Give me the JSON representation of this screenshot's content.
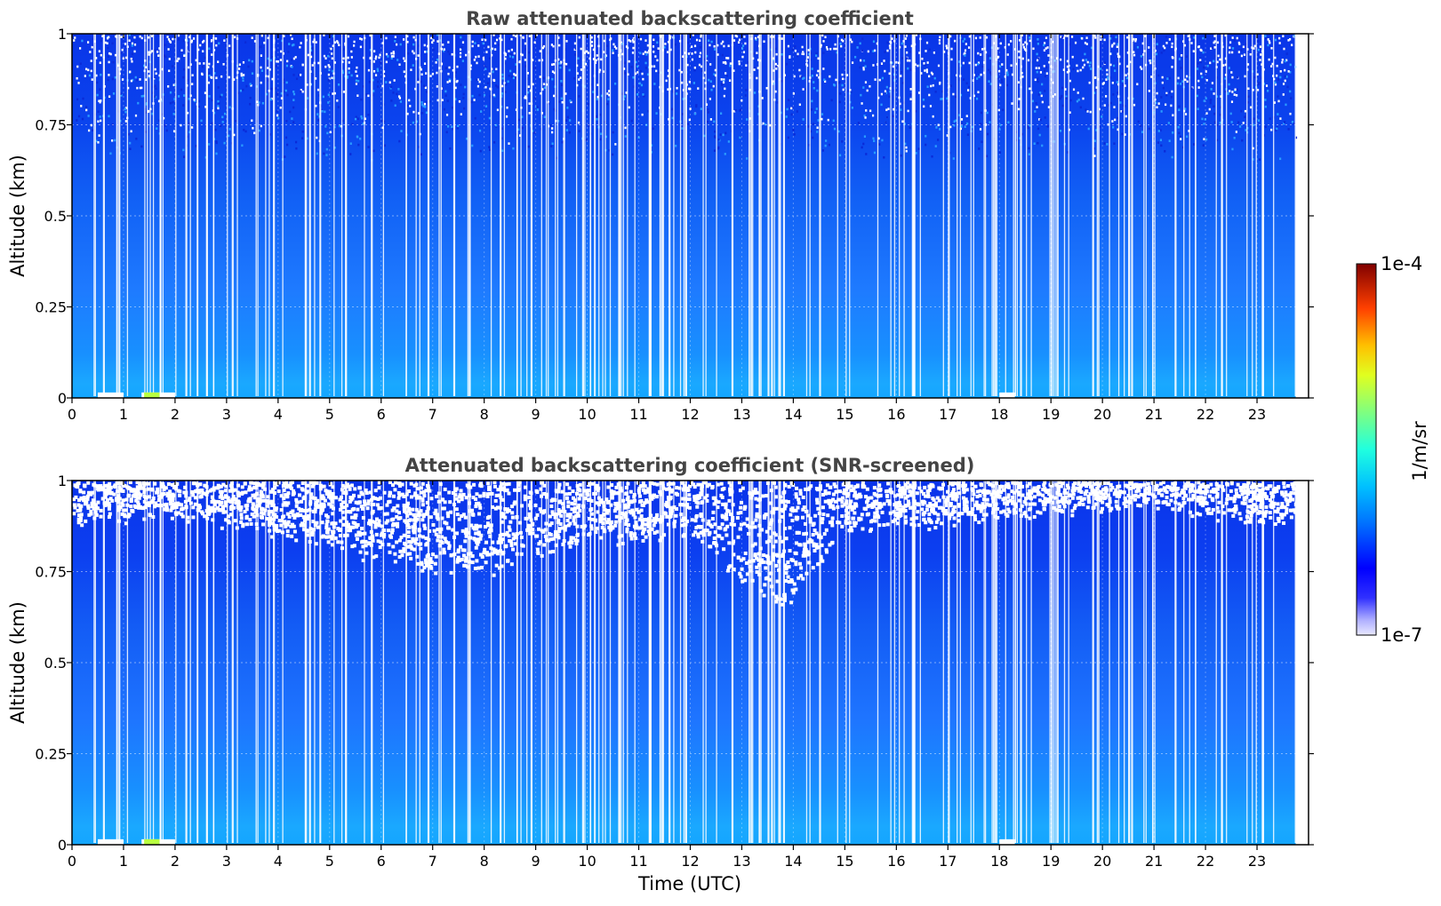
{
  "chart_data": [
    {
      "type": "heatmap",
      "title": "Raw attenuated backscattering coefficient",
      "xlabel": "",
      "ylabel": "Altitude (km)",
      "xlim": [
        0,
        24
      ],
      "ylim": [
        0,
        1
      ],
      "x_ticks": [
        "0",
        "1",
        "2",
        "3",
        "4",
        "5",
        "6",
        "7",
        "8",
        "9",
        "10",
        "11",
        "12",
        "13",
        "14",
        "15",
        "16",
        "17",
        "18",
        "19",
        "20",
        "21",
        "22",
        "23"
      ],
      "y_ticks": [
        "0",
        "0.25",
        "0.5",
        "0.75",
        "1"
      ],
      "data_end_time": 23.75,
      "grid": true,
      "levels_log10": {
        "altitude_km": [
          0.0,
          0.05,
          0.1,
          0.25,
          0.5,
          0.75,
          0.9,
          1.0
        ],
        "log10_beta": [
          -5.7,
          -5.85,
          -5.95,
          -6.1,
          -6.25,
          -6.45,
          -6.55,
          -6.6
        ]
      },
      "white_gaps_note_hours": [
        0.6,
        0.9,
        1.7,
        2.2,
        2.6,
        3.1,
        3.9,
        4.6,
        5.3,
        5.8,
        6.9,
        7.4,
        7.7,
        8.3,
        8.9,
        9.9,
        10.6,
        11.2,
        11.9,
        12.8,
        13.5,
        13.8,
        14.5,
        16.3,
        17.0,
        17.9,
        18.4,
        19.0,
        19.8,
        20.5,
        21.4,
        22.3,
        23.1
      ]
    },
    {
      "type": "heatmap",
      "title": "Attenuated backscattering coefficient (SNR-screened)",
      "xlabel": "Time (UTC)",
      "ylabel": "Altitude (km)",
      "xlim": [
        0,
        24
      ],
      "ylim": [
        0,
        1
      ],
      "x_ticks": [
        "0",
        "1",
        "2",
        "3",
        "4",
        "5",
        "6",
        "7",
        "8",
        "9",
        "10",
        "11",
        "12",
        "13",
        "14",
        "15",
        "16",
        "17",
        "18",
        "19",
        "20",
        "21",
        "22",
        "23"
      ],
      "y_ticks": [
        "0",
        "0.25",
        "0.5",
        "0.75",
        "1"
      ],
      "data_end_time": 23.75,
      "grid": true,
      "screened_top_km_by_hour": {
        "hours": [
          0,
          2,
          4,
          6,
          7,
          8,
          9,
          10,
          12,
          13.7,
          15,
          17,
          19,
          21,
          23
        ],
        "altitude_km": [
          0.9,
          0.92,
          0.86,
          0.8,
          0.76,
          0.77,
          0.8,
          0.85,
          0.87,
          0.66,
          0.88,
          0.9,
          0.93,
          0.95,
          0.9
        ]
      }
    }
  ],
  "colorbar": {
    "label": "1/m/sr",
    "min_label": "1e-7",
    "max_label": "1e-4",
    "scale": "log",
    "colormap": "jet",
    "range": [
      1e-07,
      0.0001
    ]
  }
}
